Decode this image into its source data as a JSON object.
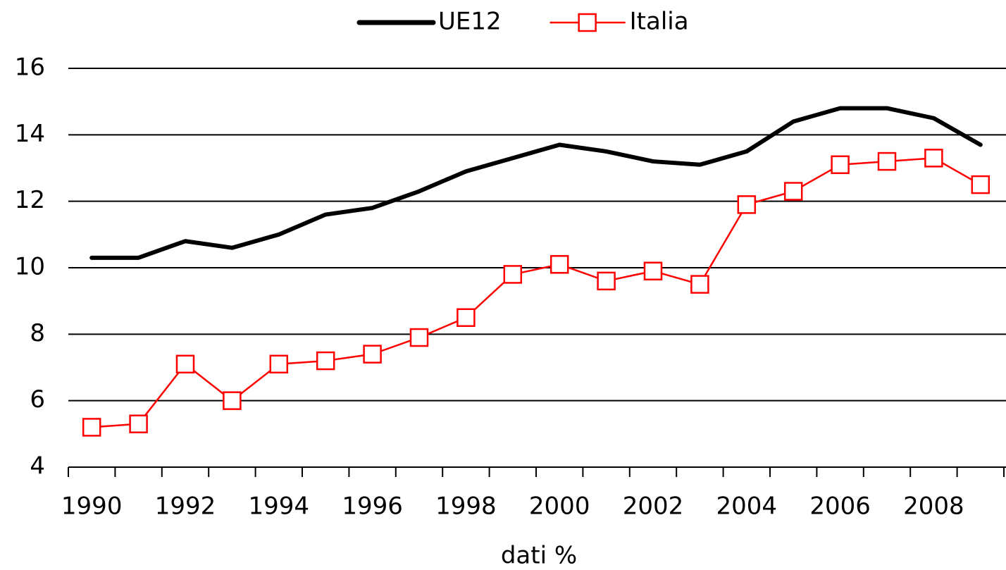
{
  "chart_data": {
    "type": "line",
    "categories": [
      "1990",
      null,
      "1992",
      null,
      "1994",
      null,
      "1996",
      null,
      "1998",
      null,
      "2000",
      null,
      "2002",
      null,
      "2004",
      null,
      "2006",
      null,
      "2008",
      null
    ],
    "series": [
      {
        "name": "UE12",
        "color": "#000000",
        "values": [
          10.3,
          10.3,
          10.8,
          10.6,
          11.0,
          11.6,
          11.8,
          12.3,
          12.9,
          13.3,
          13.7,
          13.5,
          13.2,
          13.1,
          13.5,
          14.4,
          14.8,
          14.8,
          14.5,
          13.7
        ]
      },
      {
        "name": "Italia",
        "color": "#ff0000",
        "marker": "square",
        "values": [
          5.2,
          5.3,
          7.1,
          6.0,
          7.1,
          7.2,
          7.4,
          7.9,
          8.5,
          9.8,
          10.1,
          9.6,
          9.9,
          9.5,
          11.9,
          12.3,
          13.1,
          13.2,
          13.3,
          12.5
        ]
      }
    ],
    "xlabel": "dati %",
    "ylim": [
      4,
      16
    ],
    "yticks": [
      4,
      6,
      8,
      10,
      12,
      14,
      16
    ],
    "grid": true,
    "legend": "top"
  }
}
